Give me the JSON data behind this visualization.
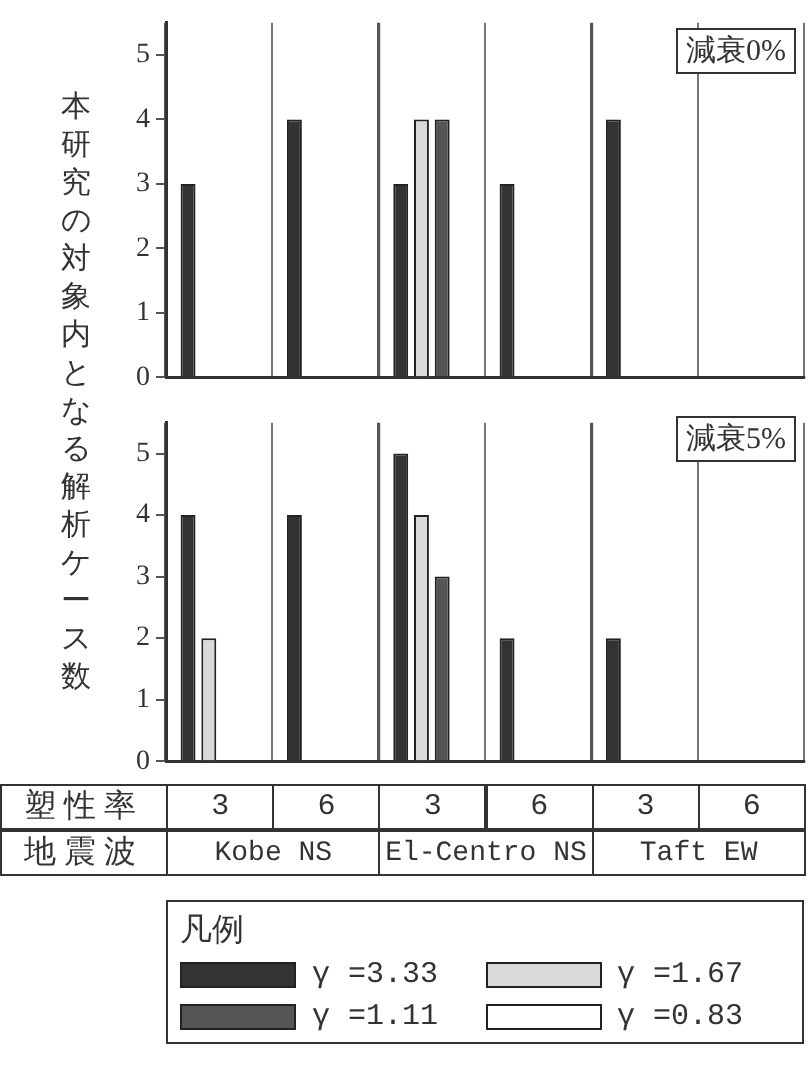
{
  "chart_data": [
    {
      "type": "bar",
      "title": "減衰0%",
      "ylabel": "本研究の対象内となる解析ケース数",
      "categories": [
        "3",
        "6",
        "3",
        "6",
        "3",
        "6"
      ],
      "ylim": [
        0,
        5.5
      ],
      "yticks": [
        0,
        1,
        2,
        3,
        4,
        5
      ],
      "grid": "x",
      "legend": false,
      "tick_labels": "y",
      "series": [
        {
          "color": "#333333",
          "values": [
            3,
            4,
            3,
            3,
            4,
            0
          ]
        },
        {
          "color": "#d9d9d9",
          "values": [
            0,
            0,
            4,
            0,
            0,
            0
          ]
        },
        {
          "color": "#555555",
          "values": [
            0,
            0,
            4,
            0,
            0,
            0
          ]
        },
        {
          "color": "#ffffff",
          "values": [
            0,
            0,
            0,
            0,
            0,
            0
          ]
        }
      ]
    },
    {
      "type": "bar",
      "title": "減衰5%",
      "categories": [
        "3",
        "6",
        "3",
        "6",
        "3",
        "6"
      ],
      "ylim": [
        0,
        5.5
      ],
      "yticks": [
        0,
        1,
        2,
        3,
        4,
        5
      ],
      "grid": "x",
      "legend": "bottom",
      "legend_title": "凡例",
      "annotations": [
        "塑性率",
        "地震波",
        "Kobe NS",
        "El-Centro NS",
        "Taft EW"
      ],
      "series": [
        {
          "name": "γ =3.33",
          "color": "#333333",
          "values": [
            4,
            4,
            5,
            2,
            2,
            0
          ]
        },
        {
          "name": "γ =1.67",
          "color": "#d9d9d9",
          "values": [
            2,
            0,
            4,
            0,
            0,
            0
          ]
        },
        {
          "name": "γ =1.11",
          "color": "#555555",
          "values": [
            0,
            0,
            3,
            0,
            0,
            0
          ]
        },
        {
          "name": "γ =0.83",
          "color": "#ffffff",
          "values": [
            0,
            0,
            0,
            0,
            0,
            0
          ]
        }
      ]
    }
  ]
}
